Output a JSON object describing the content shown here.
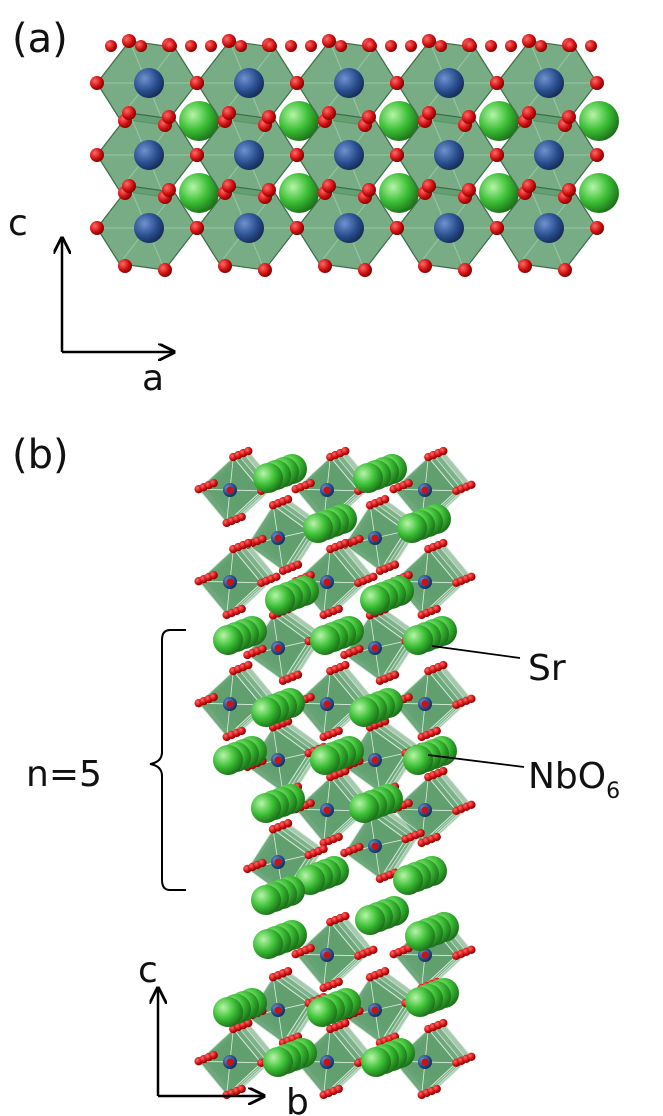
{
  "panel_a": {
    "label": "(a)",
    "axis_c": "c",
    "axis_a": "a"
  },
  "panel_b": {
    "label": "(b)",
    "axis_c": "c",
    "axis_b": "b",
    "layer_label": "n=5",
    "sr_label": "Sr",
    "nbo6_label": "NbO",
    "nbo6_subscript": "6"
  },
  "colors": {
    "octahedron": "#5f9e6e",
    "octahedron_edge": "#3d6b48",
    "oxygen": "#cc1111",
    "niobium": "#2a4f8f",
    "strontium": "#3bbf35"
  }
}
